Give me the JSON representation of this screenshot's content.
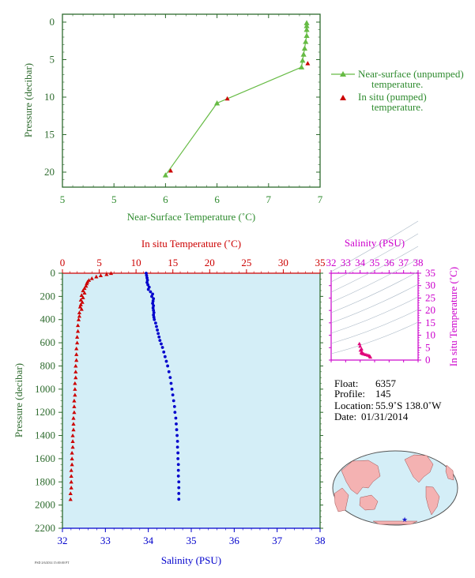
{
  "colors": {
    "green": "#2e6b2e",
    "red": "#cc0000",
    "blue": "#0000cc",
    "magenta": "#cc00cc",
    "line_green": "#5cb85c",
    "panel_bg": "#d4eef7"
  },
  "chart_data": [
    {
      "type": "line",
      "xlabel": "Near-Surface Temperature (˚C)",
      "ylabel": "Pressure (decibar)",
      "x_ticks": [
        "5",
        "5",
        "6",
        "6",
        "7",
        "7"
      ],
      "x_tick_values": [
        5.0,
        5.5,
        6.0,
        6.5,
        7.0,
        7.5
      ],
      "y_ticks": [
        "0",
        "5",
        "10",
        "15",
        "20"
      ],
      "xlim": [
        5.0,
        7.5
      ],
      "ylim": [
        0,
        22
      ],
      "series": [
        {
          "name": "Near-surface (unpumped) temperature.",
          "marker": "triangle",
          "color": "#66bb44",
          "points": [
            [
              7.37,
              0.1
            ],
            [
              7.37,
              0.5
            ],
            [
              7.37,
              1.0
            ],
            [
              7.37,
              1.8
            ],
            [
              7.36,
              2.6
            ],
            [
              7.35,
              3.5
            ],
            [
              7.34,
              4.3
            ],
            [
              7.33,
              5.1
            ],
            [
              7.32,
              6.0
            ],
            [
              6.5,
              10.8
            ],
            [
              6.0,
              20.4
            ]
          ]
        },
        {
          "name": "In situ (pumped) temperature.",
          "marker": "triangle",
          "color": "#cc0000",
          "points": [
            [
              7.38,
              5.5
            ],
            [
              6.6,
              10.2
            ],
            [
              6.05,
              19.8
            ]
          ]
        }
      ],
      "legend": [
        "Near-surface (unpumped)",
        "temperature.",
        "In situ (pumped)",
        "temperature."
      ]
    },
    {
      "type": "scatter",
      "title": "In situ Temperature (˚C)",
      "xlabel": "Salinity (PSU)",
      "ylabel": "Pressure (decibar)",
      "temp_ticks": [
        "0",
        "5",
        "10",
        "15",
        "20",
        "25",
        "30",
        "35"
      ],
      "sal_ticks": [
        "32",
        "33",
        "34",
        "35",
        "36",
        "37",
        "38"
      ],
      "y_ticks": [
        "0",
        "200",
        "400",
        "600",
        "800",
        "1000",
        "1200",
        "1400",
        "1600",
        "1800",
        "2000",
        "2200"
      ],
      "temp_lim": [
        0,
        35
      ],
      "sal_lim": [
        32,
        38
      ],
      "ylim": [
        0,
        2200
      ],
      "series": [
        {
          "name": "In situ Temperature",
          "color": "#cc0000",
          "marker": "triangle",
          "points": [
            [
              6.6,
              0
            ],
            [
              6.0,
              10
            ],
            [
              5.2,
              20
            ],
            [
              4.6,
              30
            ],
            [
              4.0,
              45
            ],
            [
              3.6,
              60
            ],
            [
              3.4,
              75
            ],
            [
              3.3,
              90
            ],
            [
              3.2,
              110
            ],
            [
              3.0,
              130
            ],
            [
              2.8,
              150
            ],
            [
              3.0,
              170
            ],
            [
              2.6,
              190
            ],
            [
              2.8,
              210
            ],
            [
              2.5,
              230
            ],
            [
              2.7,
              250
            ],
            [
              2.5,
              270
            ],
            [
              2.4,
              290
            ],
            [
              2.6,
              310
            ],
            [
              2.3,
              340
            ],
            [
              2.3,
              370
            ],
            [
              2.2,
              400
            ],
            [
              2.1,
              450
            ],
            [
              2.1,
              500
            ],
            [
              2.0,
              550
            ],
            [
              2.0,
              600
            ],
            [
              1.9,
              650
            ],
            [
              1.9,
              700
            ],
            [
              1.9,
              750
            ],
            [
              1.8,
              800
            ],
            [
              1.8,
              850
            ],
            [
              1.8,
              900
            ],
            [
              1.7,
              950
            ],
            [
              1.7,
              1000
            ],
            [
              1.7,
              1050
            ],
            [
              1.6,
              1100
            ],
            [
              1.6,
              1150
            ],
            [
              1.6,
              1200
            ],
            [
              1.5,
              1250
            ],
            [
              1.5,
              1300
            ],
            [
              1.5,
              1350
            ],
            [
              1.4,
              1400
            ],
            [
              1.4,
              1450
            ],
            [
              1.4,
              1500
            ],
            [
              1.3,
              1550
            ],
            [
              1.3,
              1600
            ],
            [
              1.3,
              1650
            ],
            [
              1.2,
              1700
            ],
            [
              1.2,
              1750
            ],
            [
              1.2,
              1800
            ],
            [
              1.2,
              1850
            ],
            [
              1.1,
              1900
            ],
            [
              1.1,
              1950
            ]
          ]
        },
        {
          "name": "Salinity",
          "color": "#0000cc",
          "marker": "dot",
          "points": [
            [
              33.95,
              0
            ],
            [
              33.96,
              20
            ],
            [
              33.97,
              40
            ],
            [
              33.98,
              60
            ],
            [
              33.97,
              80
            ],
            [
              33.99,
              100
            ],
            [
              34.02,
              120
            ],
            [
              34.0,
              140
            ],
            [
              34.05,
              160
            ],
            [
              34.1,
              180
            ],
            [
              34.08,
              200
            ],
            [
              34.12,
              220
            ],
            [
              34.11,
              240
            ],
            [
              34.1,
              260
            ],
            [
              34.12,
              280
            ],
            [
              34.11,
              300
            ],
            [
              34.12,
              320
            ],
            [
              34.13,
              340
            ],
            [
              34.12,
              360
            ],
            [
              34.13,
              380
            ],
            [
              34.14,
              400
            ],
            [
              34.17,
              430
            ],
            [
              34.19,
              460
            ],
            [
              34.21,
              490
            ],
            [
              34.23,
              520
            ],
            [
              34.25,
              550
            ],
            [
              34.27,
              580
            ],
            [
              34.3,
              610
            ],
            [
              34.33,
              640
            ],
            [
              34.36,
              680
            ],
            [
              34.39,
              720
            ],
            [
              34.42,
              760
            ],
            [
              34.45,
              800
            ],
            [
              34.48,
              850
            ],
            [
              34.51,
              900
            ],
            [
              34.53,
              950
            ],
            [
              34.55,
              1000
            ],
            [
              34.57,
              1050
            ],
            [
              34.59,
              1100
            ],
            [
              34.61,
              1150
            ],
            [
              34.62,
              1200
            ],
            [
              34.64,
              1250
            ],
            [
              34.65,
              1300
            ],
            [
              34.66,
              1350
            ],
            [
              34.67,
              1400
            ],
            [
              34.68,
              1450
            ],
            [
              34.68,
              1500
            ],
            [
              34.69,
              1550
            ],
            [
              34.69,
              1600
            ],
            [
              34.7,
              1650
            ],
            [
              34.7,
              1700
            ],
            [
              34.7,
              1750
            ],
            [
              34.71,
              1800
            ],
            [
              34.71,
              1850
            ],
            [
              34.71,
              1900
            ],
            [
              34.71,
              1950
            ]
          ]
        }
      ]
    },
    {
      "type": "scatter",
      "title": "Salinity (PSU)",
      "ylabel": "In situ Temperature (˚C)",
      "sal_ticks": [
        "32",
        "33",
        "34",
        "35",
        "36",
        "37",
        "38"
      ],
      "temp_ticks": [
        "0",
        "5",
        "10",
        "15",
        "20",
        "25",
        "30",
        "35"
      ],
      "sal_lim": [
        32,
        38
      ],
      "temp_lim": [
        0,
        35
      ],
      "points": [
        [
          33.95,
          6.6
        ],
        [
          34.0,
          5.6
        ],
        [
          34.1,
          4.5
        ],
        [
          34.12,
          3.4
        ],
        [
          34.13,
          2.8
        ],
        [
          34.18,
          2.6
        ],
        [
          34.28,
          2.4
        ],
        [
          34.4,
          2.2
        ],
        [
          34.52,
          2.0
        ],
        [
          34.62,
          1.8
        ],
        [
          34.68,
          1.5
        ],
        [
          34.71,
          1.2
        ],
        [
          34.02,
          4.0
        ],
        [
          34.08,
          3.0
        ]
      ]
    }
  ],
  "info": {
    "float_label": "Float:",
    "float_value": "6357",
    "profile_label": "Profile:",
    "profile_value": "145",
    "location_label": "Location:",
    "location_value": "55.9˚S  138.0˚W",
    "date_label": "Date:",
    "date_value": "01/31/2014"
  },
  "footer_text": "PSD 2/6/2014 15:00:00 PT"
}
